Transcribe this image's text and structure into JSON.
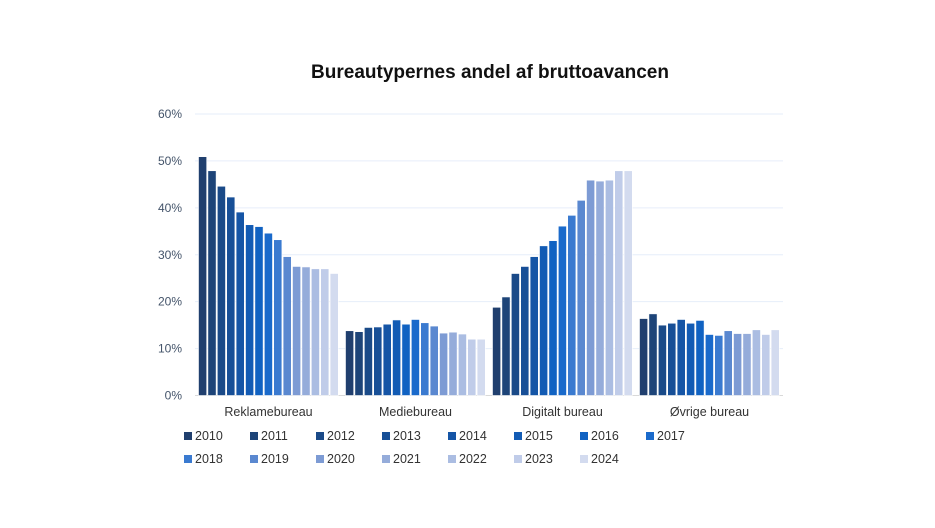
{
  "chart_data": {
    "type": "bar",
    "title": "Bureautypernes andel af bruttoavancen",
    "xlabel": "",
    "ylabel": "",
    "ylim": [
      0,
      60
    ],
    "y_ticks": [
      "0%",
      "10%",
      "20%",
      "30%",
      "40%",
      "50%",
      "60%"
    ],
    "grid": true,
    "legend_position": "bottom",
    "categories": [
      "Reklamebureau",
      "Mediebureau",
      "Digitalt bureau",
      "Øvrige bureau"
    ],
    "series": [
      {
        "name": "2010",
        "color": "#203f6e",
        "values": [
          50.9,
          13.8,
          18.8,
          16.4
        ]
      },
      {
        "name": "2011",
        "color": "#1d4478",
        "values": [
          47.9,
          13.6,
          21.0,
          17.4
        ]
      },
      {
        "name": "2012",
        "color": "#1a4a88",
        "values": [
          44.6,
          14.5,
          26.0,
          15.0
        ]
      },
      {
        "name": "2013",
        "color": "#174f97",
        "values": [
          42.3,
          14.6,
          27.5,
          15.4
        ]
      },
      {
        "name": "2014",
        "color": "#1555a6",
        "values": [
          39.1,
          15.2,
          29.6,
          16.2
        ]
      },
      {
        "name": "2015",
        "color": "#125bb4",
        "values": [
          36.4,
          16.1,
          31.9,
          15.4
        ]
      },
      {
        "name": "2016",
        "color": "#1062c2",
        "values": [
          36.0,
          15.2,
          33.0,
          16.0
        ]
      },
      {
        "name": "2017",
        "color": "#1a6acb",
        "values": [
          34.6,
          16.2,
          36.1,
          13.0
        ]
      },
      {
        "name": "2018",
        "color": "#3a7ad0",
        "values": [
          33.2,
          15.5,
          38.4,
          12.8
        ]
      },
      {
        "name": "2019",
        "color": "#5a88d0",
        "values": [
          29.6,
          14.8,
          41.6,
          13.8
        ]
      },
      {
        "name": "2020",
        "color": "#7d9bd4",
        "values": [
          27.5,
          13.3,
          45.9,
          13.2
        ]
      },
      {
        "name": "2021",
        "color": "#95acda",
        "values": [
          27.4,
          13.5,
          45.7,
          13.2
        ]
      },
      {
        "name": "2022",
        "color": "#abbde2",
        "values": [
          27.0,
          13.1,
          45.9,
          14.0
        ]
      },
      {
        "name": "2023",
        "color": "#c0cce9",
        "values": [
          27.0,
          12.0,
          47.9,
          13.0
        ]
      },
      {
        "name": "2024",
        "color": "#d3dbef",
        "values": [
          26.0,
          12.0,
          47.9,
          14.0
        ]
      }
    ]
  }
}
